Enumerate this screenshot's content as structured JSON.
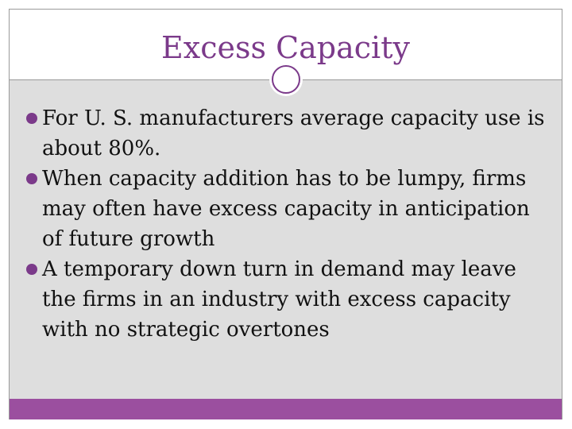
{
  "slide": {
    "title": "Excess Capacity",
    "bullets": [
      "For U. S. manufacturers average capacity use is about 80%.",
      "When capacity addition has to be lumpy, firms may often have excess capacity in anticipation of future growth",
      "A temporary down turn in demand may leave the firms in an industry with excess capacity with no strategic overtones"
    ]
  },
  "colors": {
    "accent": "#7b3a8a",
    "footer": "#9b4f9f",
    "body_background": "#dedede"
  }
}
